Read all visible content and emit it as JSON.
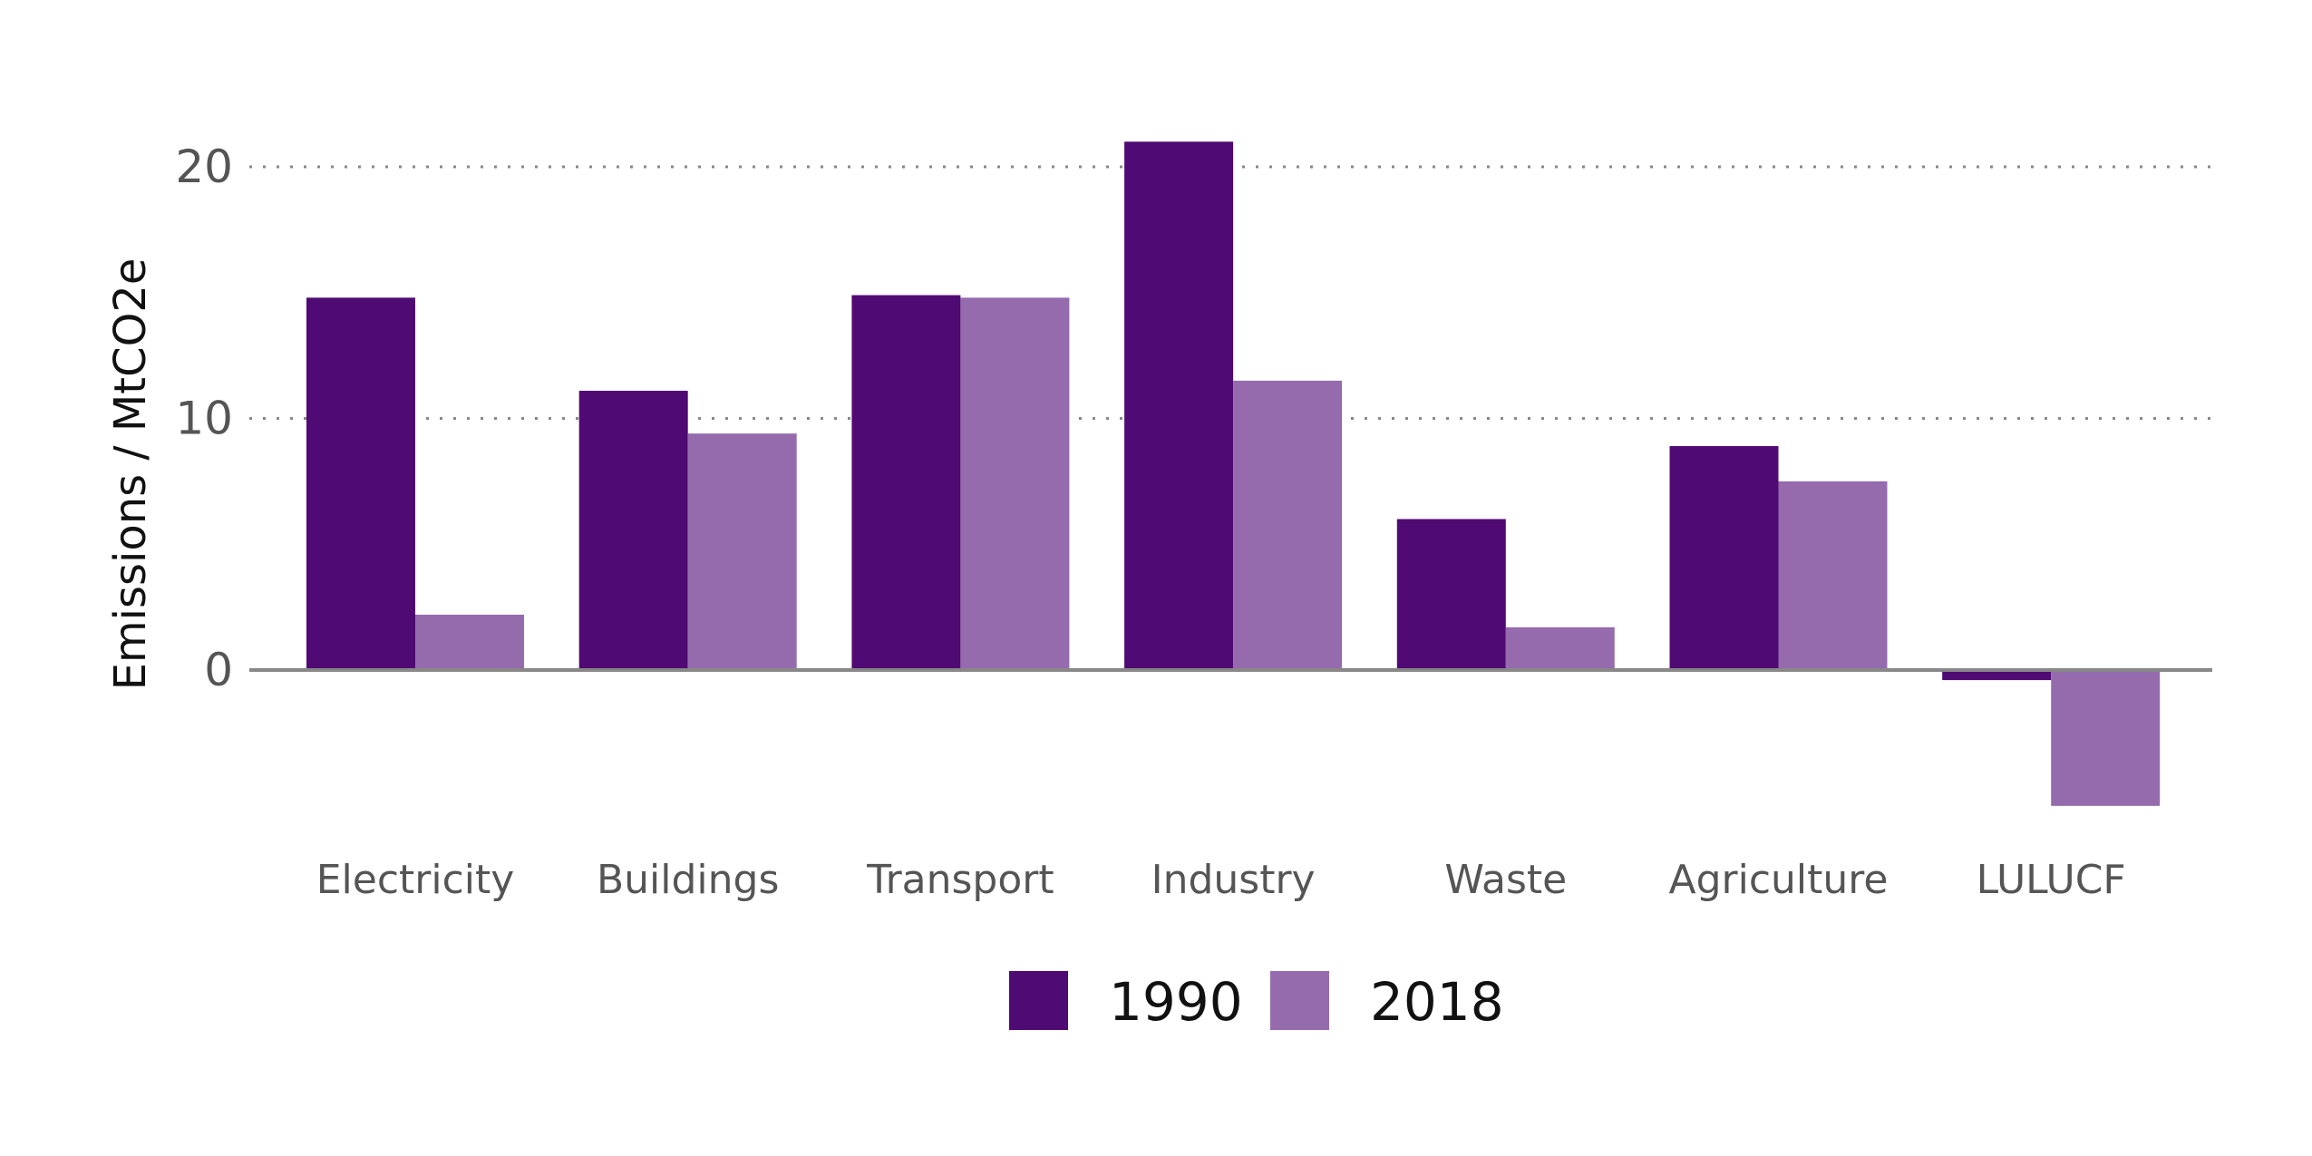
{
  "chart_data": {
    "type": "bar",
    "ylabel": "Emissions / MtCO2e",
    "xlabel": "",
    "categories": [
      "Electricity",
      "Buildings",
      "Transport",
      "Industry",
      "Waste",
      "Agriculture",
      "LULUCF"
    ],
    "series": [
      {
        "name": "1990",
        "color": "#500a73",
        "values": [
          14.8,
          11.1,
          14.9,
          21.0,
          6.0,
          8.9,
          -0.4
        ]
      },
      {
        "name": "2018",
        "color": "#966bae",
        "values": [
          2.2,
          9.4,
          14.8,
          11.5,
          1.7,
          7.5,
          -5.4
        ]
      }
    ],
    "yticks": [
      0,
      10,
      20
    ],
    "ytick_labels": [
      "0",
      "10",
      "20"
    ],
    "ylim": [
      -7,
      22
    ],
    "grid": "horizontal dotted",
    "legend": "bottom"
  }
}
